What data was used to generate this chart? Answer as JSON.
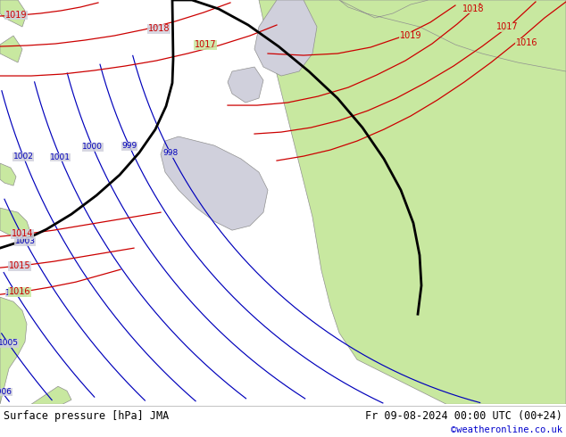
{
  "title_left": "Surface pressure [hPa] JMA",
  "title_right": "Fr 09-08-2024 00:00 UTC (00+24)",
  "copyright": "©weatheronline.co.uk",
  "bg_sea_color": "#d0d0dc",
  "land_color": "#c8e8a0",
  "border_color": "#909090",
  "blue_color": "#0000bb",
  "red_color": "#cc0000",
  "black_color": "#000000",
  "bottom_bar_color": "#ffffff",
  "bottom_text_color": "#000000",
  "copyright_color": "#0000cc",
  "figsize": [
    6.34,
    4.9
  ],
  "dpi": 100
}
